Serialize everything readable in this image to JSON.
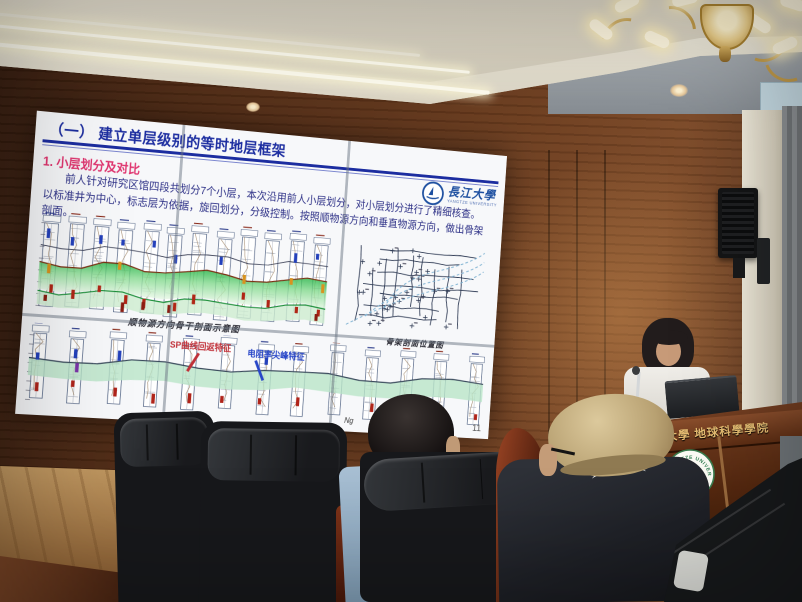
{
  "slide": {
    "section_title": "（一） 建立单层级别的等时地层框架",
    "subsection_title": "1. 小层划分及对比",
    "body_text": "前人针对研究区馆四段共划分7个小层，本次沿用前人小层划分，对小层划分进行了精细核查。以标准井为中心，标志层为依据，旋回划分，分级控制。按照顺物源方向和垂直物源方向，做出骨架剖面。",
    "logo": {
      "name": "長江大學",
      "subtext": "YANGTZE UNIVERSITY"
    },
    "page_number": "11",
    "strat_label": "Ng",
    "colors": {
      "title": "#1c2da0",
      "subtitle": "#e0336e",
      "body": "#2c2f86",
      "green_band": "#2bb24c"
    },
    "figures": {
      "section_top": {
        "type": "well-log-cross-section",
        "wells": 12,
        "caption": "顺物源方向骨干剖面示意图"
      },
      "well_map": {
        "type": "well-location-map",
        "caption": "骨架剖面位置图"
      },
      "section_bottom": {
        "type": "well-log-cross-section",
        "wells": 13,
        "annotations": [
          {
            "text": "SP曲线回返特征",
            "color": "#c03038"
          },
          {
            "text": "电阻率尖峰特征",
            "color": "#2846c8"
          }
        ]
      }
    }
  },
  "podium": {
    "sign_text": "長江大學 地球科學學院",
    "emblem_text": "YANGTZE UNIVERSITY"
  },
  "scene": {
    "objects": [
      "video-wall",
      "chandelier",
      "led-cove-lights",
      "wall-speaker",
      "curtain",
      "white-column",
      "podium",
      "presenter",
      "laptop",
      "microphone",
      "audience-members",
      "leather-chairs",
      "wood-floor"
    ]
  }
}
